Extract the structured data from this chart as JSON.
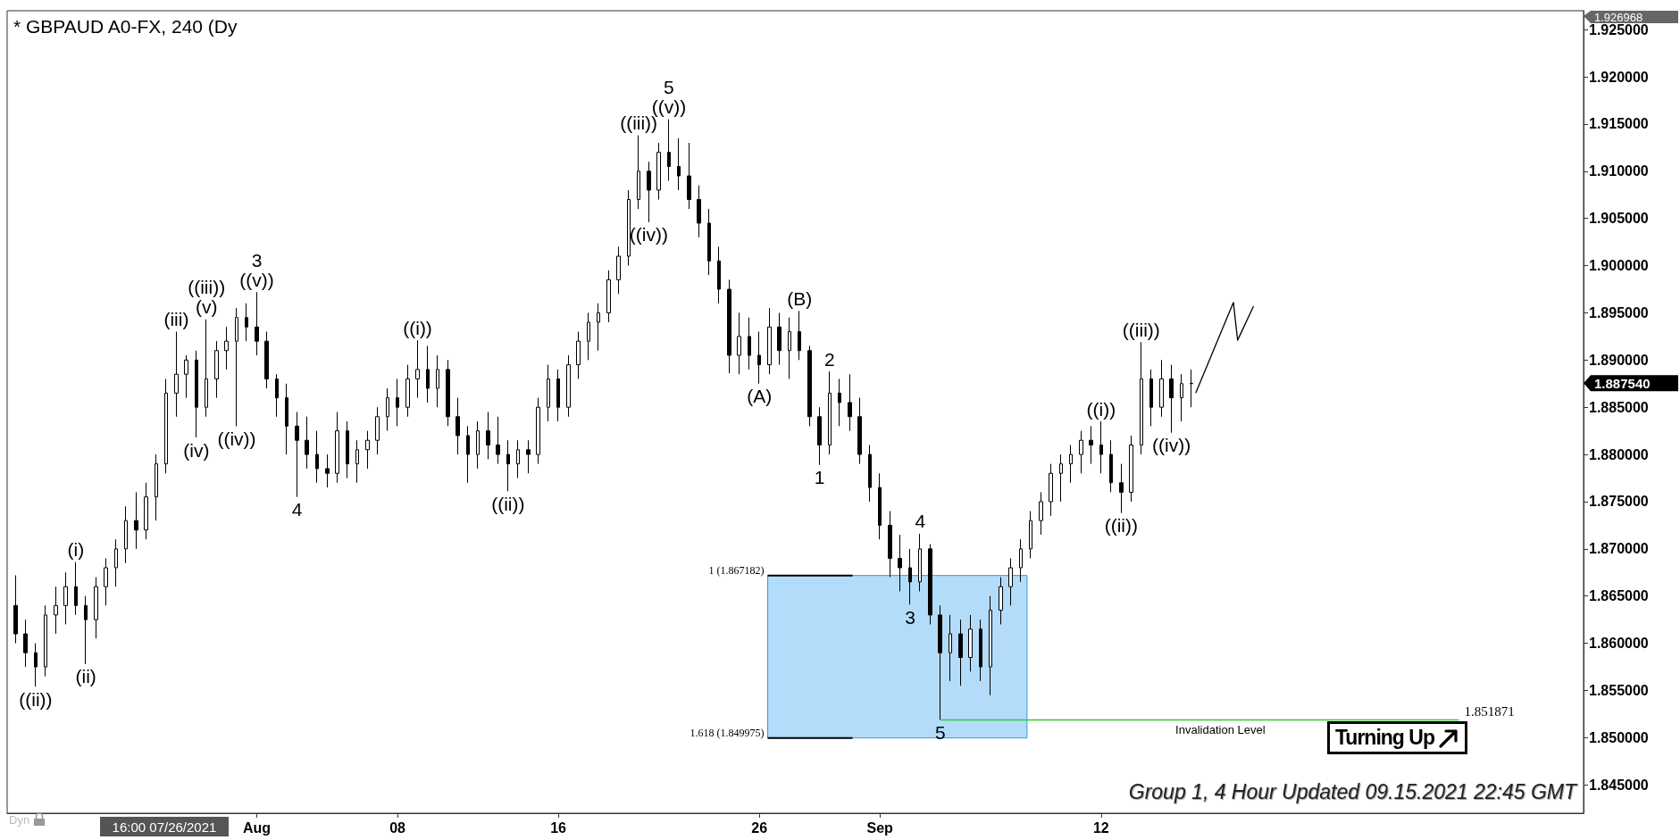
{
  "chart_data": {
    "type": "candlestick",
    "title": "* GBPAUD A0-FX, 240 (Dy",
    "color": "#000000",
    "x": [
      "2021-07-20T00:00",
      "2021-07-20T12:00",
      "2021-07-21T00:00",
      "2021-07-21T12:00",
      "2021-07-22T00:00",
      "2021-07-22T12:00",
      "2021-07-23T00:00",
      "2021-07-23T12:00",
      "2021-07-24T00:00",
      "2021-07-24T12:00",
      "2021-07-25T00:00",
      "2021-07-25T12:00",
      "2021-07-26T00:00",
      "2021-07-26T12:00",
      "2021-07-27T00:00",
      "2021-07-27T12:00",
      "2021-07-28T00:00",
      "2021-07-28T12:00",
      "2021-07-29T00:00",
      "2021-07-29T12:00",
      "2021-07-30T00:00",
      "2021-07-30T12:00",
      "2021-07-31T00:00",
      "2021-07-31T12:00",
      "2021-08-01T00:00",
      "2021-08-01T12:00",
      "2021-08-02T00:00",
      "2021-08-02T12:00",
      "2021-08-03T00:00",
      "2021-08-03T12:00",
      "2021-08-04T00:00",
      "2021-08-04T12:00",
      "2021-08-05T00:00",
      "2021-08-05T12:00",
      "2021-08-06T00:00",
      "2021-08-06T12:00",
      "2021-08-07T00:00",
      "2021-08-07T12:00",
      "2021-08-08T00:00",
      "2021-08-08T12:00",
      "2021-08-09T00:00",
      "2021-08-09T12:00",
      "2021-08-10T00:00",
      "2021-08-10T12:00",
      "2021-08-11T00:00",
      "2021-08-11T12:00",
      "2021-08-12T00:00",
      "2021-08-12T12:00",
      "2021-08-13T00:00",
      "2021-08-13T12:00",
      "2021-08-14T00:00",
      "2021-08-14T12:00",
      "2021-08-15T00:00",
      "2021-08-15T12:00",
      "2021-08-16T00:00",
      "2021-08-16T12:00",
      "2021-08-17T00:00",
      "2021-08-17T12:00",
      "2021-08-18T00:00",
      "2021-08-18T12:00",
      "2021-08-19T00:00",
      "2021-08-19T12:00",
      "2021-08-20T00:00",
      "2021-08-20T12:00",
      "2021-08-21T00:00",
      "2021-08-21T12:00",
      "2021-08-22T00:00",
      "2021-08-22T12:00",
      "2021-08-23T00:00",
      "2021-08-23T12:00",
      "2021-08-24T00:00",
      "2021-08-24T12:00",
      "2021-08-25T00:00",
      "2021-08-25T12:00",
      "2021-08-26T00:00",
      "2021-08-26T12:00",
      "2021-08-27T00:00",
      "2021-08-27T12:00",
      "2021-08-28T00:00",
      "2021-08-28T12:00",
      "2021-08-29T00:00",
      "2021-08-29T12:00",
      "2021-08-30T00:00",
      "2021-08-30T12:00",
      "2021-08-31T00:00",
      "2021-08-31T12:00",
      "2021-09-01T00:00",
      "2021-09-01T12:00",
      "2021-09-02T00:00",
      "2021-09-02T12:00",
      "2021-09-03T00:00",
      "2021-09-03T12:00",
      "2021-09-04T00:00",
      "2021-09-04T12:00",
      "2021-09-05T00:00",
      "2021-09-05T12:00",
      "2021-09-06T00:00",
      "2021-09-06T12:00",
      "2021-09-07T00:00",
      "2021-09-07T12:00",
      "2021-09-08T00:00",
      "2021-09-08T12:00",
      "2021-09-09T00:00",
      "2021-09-09T12:00",
      "2021-09-10T00:00",
      "2021-09-10T12:00",
      "2021-09-11T00:00",
      "2021-09-11T12:00",
      "2021-09-12T00:00",
      "2021-09-12T12:00",
      "2021-09-13T00:00",
      "2021-09-13T12:00",
      "2021-09-14T00:00",
      "2021-09-14T12:00",
      "2021-09-15T00:00",
      "2021-09-15T12:00",
      "2021-09-16T00:00",
      "2021-09-16T12:00"
    ],
    "ohlc": [
      [
        1.864,
        1.8672,
        1.86,
        1.861
      ],
      [
        1.861,
        1.8625,
        1.8575,
        1.859
      ],
      [
        1.859,
        1.86,
        1.8554,
        1.8575
      ],
      [
        1.8575,
        1.864,
        1.8565,
        1.863
      ],
      [
        1.863,
        1.866,
        1.861,
        1.864
      ],
      [
        1.864,
        1.8675,
        1.862,
        1.866
      ],
      [
        1.866,
        1.8686,
        1.863,
        1.864
      ],
      [
        1.864,
        1.865,
        1.8578,
        1.8625
      ],
      [
        1.8625,
        1.867,
        1.8605,
        1.866
      ],
      [
        1.866,
        1.869,
        1.864,
        1.868
      ],
      [
        1.868,
        1.871,
        1.866,
        1.87
      ],
      [
        1.87,
        1.8745,
        1.8685,
        1.873
      ],
      [
        1.873,
        1.876,
        1.87,
        1.872
      ],
      [
        1.872,
        1.877,
        1.871,
        1.8755
      ],
      [
        1.8755,
        1.88,
        1.873,
        1.879
      ],
      [
        1.879,
        1.888,
        1.878,
        1.8865
      ],
      [
        1.8865,
        1.893,
        1.884,
        1.8885
      ],
      [
        1.8885,
        1.8905,
        1.886,
        1.89
      ],
      [
        1.89,
        1.891,
        1.8818,
        1.885
      ],
      [
        1.885,
        1.8943,
        1.884,
        1.888
      ],
      [
        1.888,
        1.892,
        1.886,
        1.891
      ],
      [
        1.891,
        1.8935,
        1.889,
        1.892
      ],
      [
        1.892,
        1.8955,
        1.883,
        1.8945
      ],
      [
        1.8945,
        1.896,
        1.892,
        1.8935
      ],
      [
        1.8935,
        1.8972,
        1.8905,
        1.892
      ],
      [
        1.892,
        1.893,
        1.887,
        1.888
      ],
      [
        1.888,
        1.8885,
        1.884,
        1.886
      ],
      [
        1.886,
        1.8875,
        1.88,
        1.883
      ],
      [
        1.883,
        1.8845,
        1.8755,
        1.8815
      ],
      [
        1.8815,
        1.884,
        1.8785,
        1.88
      ],
      [
        1.88,
        1.8825,
        1.877,
        1.8785
      ],
      [
        1.8785,
        1.88,
        1.8765,
        1.878
      ],
      [
        1.878,
        1.8845,
        1.877,
        1.8825
      ],
      [
        1.8825,
        1.8835,
        1.8775,
        1.879
      ],
      [
        1.879,
        1.8815,
        1.877,
        1.8805
      ],
      [
        1.8805,
        1.8825,
        1.8785,
        1.8815
      ],
      [
        1.8815,
        1.885,
        1.88,
        1.884
      ],
      [
        1.884,
        1.887,
        1.8825,
        1.886
      ],
      [
        1.886,
        1.888,
        1.883,
        1.885
      ],
      [
        1.885,
        1.8895,
        1.884,
        1.888
      ],
      [
        1.888,
        1.8921,
        1.886,
        1.889
      ],
      [
        1.889,
        1.8915,
        1.8855,
        1.887
      ],
      [
        1.887,
        1.8905,
        1.885,
        1.889
      ],
      [
        1.889,
        1.89,
        1.883,
        1.884
      ],
      [
        1.884,
        1.886,
        1.88,
        1.882
      ],
      [
        1.882,
        1.883,
        1.877,
        1.88
      ],
      [
        1.88,
        1.8835,
        1.8785,
        1.8825
      ],
      [
        1.8825,
        1.8845,
        1.8795,
        1.881
      ],
      [
        1.881,
        1.884,
        1.879,
        1.88
      ],
      [
        1.88,
        1.8815,
        1.8761,
        1.879
      ],
      [
        1.879,
        1.8815,
        1.8775,
        1.8805
      ],
      [
        1.8805,
        1.8815,
        1.878,
        1.88
      ],
      [
        1.88,
        1.886,
        1.879,
        1.885
      ],
      [
        1.885,
        1.8895,
        1.8835,
        1.888
      ],
      [
        1.888,
        1.889,
        1.8835,
        1.885
      ],
      [
        1.885,
        1.8905,
        1.884,
        1.8895
      ],
      [
        1.8895,
        1.893,
        1.888,
        1.892
      ],
      [
        1.892,
        1.895,
        1.89,
        1.894
      ],
      [
        1.894,
        1.896,
        1.891,
        1.895
      ],
      [
        1.895,
        1.8995,
        1.894,
        1.8985
      ],
      [
        1.8985,
        1.902,
        1.897,
        1.901
      ],
      [
        1.901,
        1.908,
        1.9,
        1.907
      ],
      [
        1.907,
        1.9138,
        1.906,
        1.91
      ],
      [
        1.91,
        1.911,
        1.9046,
        1.908
      ],
      [
        1.908,
        1.913,
        1.907,
        1.912
      ],
      [
        1.912,
        1.9155,
        1.909,
        1.9105
      ],
      [
        1.9105,
        1.9135,
        1.908,
        1.9095
      ],
      [
        1.9095,
        1.913,
        1.906,
        1.907
      ],
      [
        1.907,
        1.9085,
        1.903,
        1.9045
      ],
      [
        1.9045,
        1.906,
        1.899,
        1.9005
      ],
      [
        1.9005,
        1.902,
        1.896,
        1.8975
      ],
      [
        1.8975,
        1.8985,
        1.8886,
        1.8905
      ],
      [
        1.8905,
        1.895,
        1.8885,
        1.8925
      ],
      [
        1.8925,
        1.8945,
        1.889,
        1.8905
      ],
      [
        1.8905,
        1.893,
        1.8875,
        1.8895
      ],
      [
        1.8895,
        1.8955,
        1.8885,
        1.8935
      ],
      [
        1.8935,
        1.895,
        1.8895,
        1.891
      ],
      [
        1.891,
        1.8945,
        1.888,
        1.893
      ],
      [
        1.893,
        1.8952,
        1.89,
        1.891
      ],
      [
        1.891,
        1.8915,
        1.883,
        1.884
      ],
      [
        1.884,
        1.885,
        1.8789,
        1.881
      ],
      [
        1.881,
        1.8888,
        1.88,
        1.8865
      ],
      [
        1.8865,
        1.888,
        1.883,
        1.8855
      ],
      [
        1.8855,
        1.8885,
        1.8825,
        1.884
      ],
      [
        1.884,
        1.886,
        1.879,
        1.88
      ],
      [
        1.88,
        1.881,
        1.875,
        1.8765
      ],
      [
        1.8765,
        1.878,
        1.871,
        1.8725
      ],
      [
        1.8725,
        1.874,
        1.867,
        1.869
      ],
      [
        1.869,
        1.8715,
        1.8655,
        1.868
      ],
      [
        1.868,
        1.87,
        1.8641,
        1.8665
      ],
      [
        1.8665,
        1.8716,
        1.8655,
        1.87
      ],
      [
        1.87,
        1.8705,
        1.862,
        1.863
      ],
      [
        1.863,
        1.864,
        1.8519,
        1.859
      ],
      [
        1.859,
        1.863,
        1.856,
        1.861
      ],
      [
        1.861,
        1.8625,
        1.8555,
        1.8585
      ],
      [
        1.8585,
        1.863,
        1.857,
        1.8615
      ],
      [
        1.8615,
        1.8625,
        1.856,
        1.8575
      ],
      [
        1.8575,
        1.865,
        1.8545,
        1.8635
      ],
      [
        1.8635,
        1.867,
        1.862,
        1.866
      ],
      [
        1.866,
        1.869,
        1.864,
        1.868
      ],
      [
        1.868,
        1.871,
        1.8665,
        1.87
      ],
      [
        1.87,
        1.874,
        1.869,
        1.873
      ],
      [
        1.873,
        1.876,
        1.8715,
        1.875
      ],
      [
        1.875,
        1.879,
        1.8735,
        1.878
      ],
      [
        1.878,
        1.88,
        1.875,
        1.879
      ],
      [
        1.879,
        1.881,
        1.877,
        1.88
      ],
      [
        1.88,
        1.8825,
        1.878,
        1.8815
      ],
      [
        1.8815,
        1.883,
        1.879,
        1.881
      ],
      [
        1.881,
        1.8835,
        1.878,
        1.88
      ],
      [
        1.88,
        1.8815,
        1.876,
        1.877
      ],
      [
        1.877,
        1.879,
        1.8738,
        1.876
      ],
      [
        1.876,
        1.882,
        1.875,
        1.881
      ],
      [
        1.881,
        1.8919,
        1.88,
        1.888
      ],
      [
        1.888,
        1.889,
        1.883,
        1.885
      ],
      [
        1.885,
        1.89,
        1.884,
        1.888
      ],
      [
        1.888,
        1.8895,
        1.8823,
        1.886
      ],
      [
        1.886,
        1.8885,
        1.8835,
        1.8875
      ],
      [
        1.8875,
        1.889,
        1.885,
        1.88754
      ]
    ],
    "series": [
      {
        "type": "line",
        "color": "#000000",
        "x": [
          "2021-09-16T17:00",
          "2021-09-18T14:00",
          "2021-09-18T19:00",
          "2021-09-19T14:00"
        ],
        "values": [
          1.8865,
          1.8961,
          1.8921,
          1.8957
        ]
      }
    ],
    "marker": "none",
    "xlim": [
      "2021-07-19T14:00",
      "2021-10-06T00:00"
    ],
    "xticks": [
      {
        "value": "2021-08-01",
        "label": "Aug"
      },
      {
        "value": "2021-08-08",
        "label": "08"
      },
      {
        "value": "2021-08-16",
        "label": "16"
      },
      {
        "value": "2021-08-26",
        "label": "26"
      },
      {
        "value": "2021-09-01",
        "label": "Sep"
      },
      {
        "value": "2021-09-12",
        "label": "12"
      }
    ],
    "ylim": [
      1.842,
      1.927
    ],
    "yticks": [
      {
        "value": 1.845,
        "label": "1.845000"
      },
      {
        "value": 1.85,
        "label": "1.850000"
      },
      {
        "value": 1.855,
        "label": "1.855000"
      },
      {
        "value": 1.86,
        "label": "1.860000"
      },
      {
        "value": 1.865,
        "label": "1.865000"
      },
      {
        "value": 1.87,
        "label": "1.870000"
      },
      {
        "value": 1.875,
        "label": "1.875000"
      },
      {
        "value": 1.88,
        "label": "1.880000"
      },
      {
        "value": 1.885,
        "label": "1.885000"
      },
      {
        "value": 1.89,
        "label": "1.890000"
      },
      {
        "value": 1.895,
        "label": "1.895000"
      },
      {
        "value": 1.9,
        "label": "1.900000"
      },
      {
        "value": 1.905,
        "label": "1.905000"
      },
      {
        "value": 1.91,
        "label": "1.910000"
      },
      {
        "value": 1.915,
        "label": "1.915000"
      },
      {
        "value": 1.92,
        "label": "1.920000"
      },
      {
        "value": 1.925,
        "label": "1.925000"
      }
    ],
    "grid": false,
    "bands": [
      {
        "axis": "y",
        "from": 1.849975,
        "to": 1.867182,
        "color": "#b3dcfa"
      }
    ],
    "ref_lines": [
      {
        "axis": "y",
        "value": 1.851871,
        "label": "Invalidation Level",
        "color": "#33cc33"
      }
    ],
    "annotations": [
      {
        "text": "((ii))",
        "x": "2021-07-21T00:00",
        "y": 1.8554
      },
      {
        "text": "(i)",
        "x": "2021-07-23T00:00",
        "y": 1.8686
      },
      {
        "text": "(ii)",
        "x": "2021-07-23T12:00",
        "y": 1.8578
      },
      {
        "text": "(iii)",
        "x": "2021-07-28T00:00",
        "y": 1.893
      },
      {
        "text": "(iv)",
        "x": "2021-07-29T00:00",
        "y": 1.8818
      },
      {
        "text": "(v)",
        "x": "2021-07-29T12:00",
        "y": 1.8943
      },
      {
        "text": "((iii))",
        "x": "2021-07-29T12:00",
        "y": 1.8943
      },
      {
        "text": "((iv))",
        "x": "2021-07-31T00:00",
        "y": 1.883
      },
      {
        "text": "((v))",
        "x": "2021-08-01T00:00",
        "y": 1.8972
      },
      {
        "text": "3",
        "x": "2021-08-01T00:00",
        "y": 1.8972
      },
      {
        "text": "4",
        "x": "2021-08-03T00:00",
        "y": 1.8755
      },
      {
        "text": "((i))",
        "x": "2021-08-09T00:00",
        "y": 1.8921
      },
      {
        "text": "((ii))",
        "x": "2021-08-13T12:00",
        "y": 1.8761
      },
      {
        "text": "((iii))",
        "x": "2021-08-20T00:00",
        "y": 1.9138
      },
      {
        "text": "((iv))",
        "x": "2021-08-20T12:00",
        "y": 1.9046
      },
      {
        "text": "((v))",
        "x": "2021-08-21T12:00",
        "y": 1.9155
      },
      {
        "text": "5",
        "x": "2021-08-21T12:00",
        "y": 1.9155
      },
      {
        "text": "(A)",
        "x": "2021-08-26T00:00",
        "y": 1.8875
      },
      {
        "text": "(B)",
        "x": "2021-08-28T00:00",
        "y": 1.8952
      },
      {
        "text": "1",
        "x": "2021-08-29T00:00",
        "y": 1.8789
      },
      {
        "text": "2",
        "x": "2021-08-29T12:00",
        "y": 1.8888
      },
      {
        "text": "3",
        "x": "2021-09-02T12:00",
        "y": 1.8641
      },
      {
        "text": "4",
        "x": "2021-09-03T00:00",
        "y": 1.8716
      },
      {
        "text": "5",
        "x": "2021-09-04T00:00",
        "y": 1.8519
      },
      {
        "text": "((i))",
        "x": "2021-09-12T00:00",
        "y": 1.8835
      },
      {
        "text": "((ii))",
        "x": "2021-09-13T00:00",
        "y": 1.8738
      },
      {
        "text": "((iii))",
        "x": "2021-09-14T00:00",
        "y": 1.8919
      },
      {
        "text": "((iv))",
        "x": "2021-09-15T12:00",
        "y": 1.8823
      },
      {
        "text": "1 (1.867182)",
        "x": "2021-08-26T10:00",
        "y": 1.867182
      },
      {
        "text": "1.618 (1.849975)",
        "x": "2021-08-26T10:00",
        "y": 1.849975
      },
      "1.926968",
      "1.887540",
      "16:00 07/26/2021",
      "1.851871",
      "Group 1, 4 Hour Updated 09.15.2021 22:45 GMT",
      "Turning Up",
      "Dyn"
    ]
  }
}
